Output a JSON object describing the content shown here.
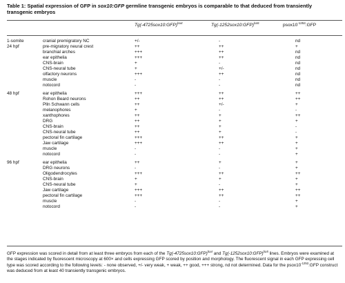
{
  "caption": {
    "label": "Table 1:",
    "part1": "Spatial expression of GFP in",
    "gene": "sox10:GFP",
    "part2": "germline transgenic embryos is comparable to that deduced from transiently transgenic embryos"
  },
  "columns": {
    "col_a": {
      "prefix": "Tg(-4725sox10:GFP)",
      "sup": "ba4"
    },
    "col_b": {
      "prefix": "Tg(-1252sox10:GFP)",
      "sup": "ba5"
    },
    "col_c": {
      "prefix": "psox10",
      "sup": "-1252",
      "suffix": ":GFP"
    }
  },
  "rows": [
    {
      "stage": "1-somite",
      "tissue": "cranial premigratory NC",
      "a": "+/-",
      "b": "-",
      "c": "nd"
    },
    {
      "stage": "24 hpf",
      "tissue": "pre-migratory neural crest",
      "a": "++",
      "b": "++",
      "c": "+"
    },
    {
      "stage": "",
      "tissue": "branchial arches",
      "a": "+++",
      "b": "++",
      "c": "nd"
    },
    {
      "stage": "",
      "tissue": "ear epithelia",
      "a": "+++",
      "b": "++",
      "c": "nd"
    },
    {
      "stage": "",
      "tissue": "CNS-brain",
      "a": "+",
      "b": "-",
      "c": "nd"
    },
    {
      "stage": "",
      "tissue": "CNS-neural tube",
      "a": "+",
      "b": "+/-",
      "c": "nd"
    },
    {
      "stage": "",
      "tissue": "olfactory neurons",
      "a": "+++",
      "b": "++",
      "c": "nd"
    },
    {
      "stage": "",
      "tissue": "muscle",
      "a": "-",
      "b": "-",
      "c": "nd"
    },
    {
      "stage": "",
      "tissue": "notocord",
      "a": "-",
      "b": "-",
      "c": "nd"
    },
    {
      "stage": "48 hpf",
      "tissue": "ear epithelia",
      "a": "+++",
      "b": "++",
      "c": "++",
      "gap": true
    },
    {
      "stage": "",
      "tissue": "Rohon Beard neurons",
      "a": "++",
      "b": "++",
      "c": "++"
    },
    {
      "stage": "",
      "tissue": "Plln Schwann cells",
      "a": "++",
      "b": "+/-",
      "c": "+"
    },
    {
      "stage": "",
      "tissue": "melanophores",
      "a": "+",
      "b": "-",
      "c": "-"
    },
    {
      "stage": "",
      "tissue": "xanthophores",
      "a": "++",
      "b": "+",
      "c": "++"
    },
    {
      "stage": "",
      "tissue": "DRG",
      "a": "++",
      "b": "+",
      "c": "+"
    },
    {
      "stage": "",
      "tissue": "CNS-brain",
      "a": "++",
      "b": "+",
      "c": "-"
    },
    {
      "stage": "",
      "tissue": "CNS-neural tube",
      "a": "++",
      "b": "+",
      "c": "-"
    },
    {
      "stage": "",
      "tissue": "pectoral fin cartilage",
      "a": "+++",
      "b": "++",
      "c": "+"
    },
    {
      "stage": "",
      "tissue": "Jaw cartilage",
      "a": "+++",
      "b": "++",
      "c": "+"
    },
    {
      "stage": "",
      "tissue": "muscle",
      "a": "-",
      "b": "-",
      "c": "+"
    },
    {
      "stage": "",
      "tissue": "notocord",
      "a": "-",
      "b": "-",
      "c": "+"
    },
    {
      "stage": "96 hpf",
      "tissue": "ear epithelia",
      "a": "++",
      "b": "+",
      "c": "+",
      "gap": true
    },
    {
      "stage": "",
      "tissue": "DRG neurons",
      "a": "-",
      "b": "-",
      "c": "+"
    },
    {
      "stage": "",
      "tissue": "Oligodendrocytes",
      "a": "+++",
      "b": "++",
      "c": "++"
    },
    {
      "stage": "",
      "tissue": "CNS-brain",
      "a": "+",
      "b": "+",
      "c": "+"
    },
    {
      "stage": "",
      "tissue": "CNS-neural tube",
      "a": "+",
      "b": "-",
      "c": "+"
    },
    {
      "stage": "",
      "tissue": "Jaw cartilage",
      "a": "+++",
      "b": "++",
      "c": "++"
    },
    {
      "stage": "",
      "tissue": "pectoral fin cartilage",
      "a": "+++",
      "b": "++",
      "c": "++"
    },
    {
      "stage": "",
      "tissue": "muscle",
      "a": "-",
      "b": "-",
      "c": "+"
    },
    {
      "stage": "",
      "tissue": "notocord",
      "a": "-",
      "b": "-",
      "c": "+"
    }
  ],
  "footnote": {
    "t1": "GFP expression was scored in detail from at least three embryos from each of the",
    "g1": "Tg(-4725sox10:GFP)",
    "s1": "ba4",
    "t2": "and",
    "g2": "Tg(-1252sox10:GFP)",
    "s2": "ba5",
    "t3": "lines. Embryos were examined at the stages indicated by fluorescent microscopy at 600× and cells expressing GFP scored by position and morphology. The fluorescent signal in each GFP expressing cell type was scored according to the following levels: - none observed, +/- very weak, + weak, ++ good, +++ strong, nd not determined. Data for the psox10",
    "s3": "-1252",
    "t4": ":GFP construct was deduced from at least 40 transiently transgenic embryos."
  }
}
